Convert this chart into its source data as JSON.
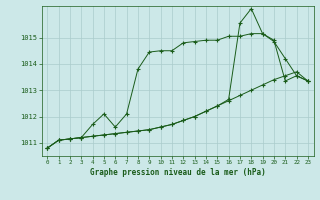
{
  "title": "Graphe pression niveau de la mer (hPa)",
  "bg_color": "#cce8e8",
  "grid_color": "#aacccc",
  "line_color": "#1a5c1a",
  "line1": {
    "x": [
      0,
      1,
      2,
      3,
      4,
      5,
      6,
      7,
      8,
      9,
      10,
      11,
      12,
      13,
      14,
      15,
      16,
      17,
      18,
      19,
      20,
      21,
      22,
      23
    ],
    "y": [
      1010.8,
      1011.1,
      1011.15,
      1011.2,
      1011.25,
      1011.3,
      1011.35,
      1011.4,
      1011.45,
      1011.5,
      1011.6,
      1011.7,
      1011.85,
      1012.0,
      1012.2,
      1012.4,
      1012.6,
      1012.8,
      1013.0,
      1013.2,
      1013.4,
      1013.55,
      1013.7,
      1013.35
    ]
  },
  "line2": {
    "x": [
      0,
      1,
      2,
      3,
      4,
      5,
      6,
      7,
      8,
      9,
      10,
      11,
      12,
      13,
      14,
      15,
      16,
      17,
      18,
      19,
      20,
      21,
      22,
      23
    ],
    "y": [
      1010.8,
      1011.1,
      1011.15,
      1011.2,
      1011.7,
      1012.1,
      1011.6,
      1012.1,
      1013.8,
      1014.45,
      1014.5,
      1014.5,
      1014.8,
      1014.85,
      1014.9,
      1014.9,
      1015.05,
      1015.05,
      1015.15,
      1015.15,
      1014.9,
      1013.35,
      1013.55,
      1013.35
    ]
  },
  "line3": {
    "x": [
      0,
      1,
      2,
      3,
      4,
      5,
      6,
      7,
      8,
      9,
      10,
      11,
      12,
      13,
      14,
      15,
      16,
      17,
      18,
      19,
      20,
      21,
      22,
      23
    ],
    "y": [
      1010.8,
      1011.1,
      1011.15,
      1011.2,
      1011.25,
      1011.3,
      1011.35,
      1011.4,
      1011.45,
      1011.5,
      1011.6,
      1011.7,
      1011.85,
      1012.0,
      1012.2,
      1012.4,
      1012.65,
      1015.55,
      1016.1,
      1015.15,
      1014.85,
      1014.2,
      1013.55,
      1013.35
    ]
  },
  "xlim": [
    -0.5,
    23.5
  ],
  "ylim": [
    1010.5,
    1016.2
  ],
  "yticks": [
    1011,
    1012,
    1013,
    1014,
    1015
  ],
  "xticks": [
    0,
    1,
    2,
    3,
    4,
    5,
    6,
    7,
    8,
    9,
    10,
    11,
    12,
    13,
    14,
    15,
    16,
    17,
    18,
    19,
    20,
    21,
    22,
    23
  ]
}
